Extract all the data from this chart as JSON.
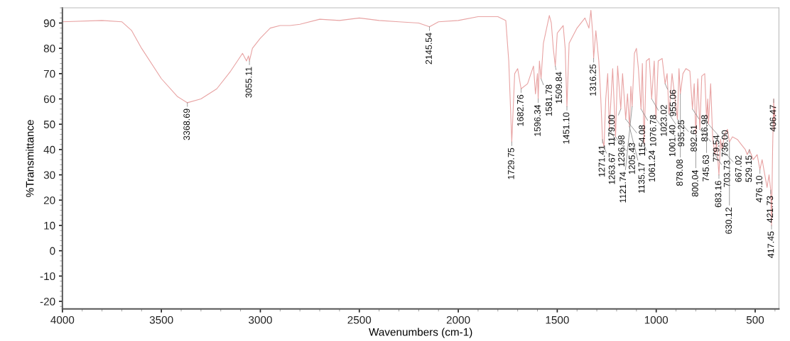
{
  "chart_data": {
    "type": "line",
    "xlabel": "Wavenumbers (cm-1)",
    "ylabel": "%Transmittance",
    "xlim": [
      4000,
      380
    ],
    "ylim": [
      -23,
      96
    ],
    "xticks": [
      4000,
      3500,
      3000,
      2500,
      2000,
      1500,
      1000,
      500
    ],
    "yticks": [
      -20,
      -10,
      0,
      10,
      20,
      30,
      40,
      50,
      60,
      70,
      80,
      90
    ],
    "grid": false,
    "marker": "none",
    "line_style": "solid",
    "series": [
      {
        "color": "#e8a3a3",
        "x": [
          4000,
          3800,
          3700,
          3650,
          3600,
          3500,
          3420,
          3368.69,
          3300,
          3220,
          3150,
          3090,
          3070,
          3060,
          3055.11,
          3040,
          3000,
          2950,
          2900,
          2850,
          2800,
          2700,
          2600,
          2500,
          2400,
          2300,
          2200,
          2145.54,
          2100,
          2000,
          1900,
          1800,
          1760,
          1745,
          1729.75,
          1715,
          1700,
          1682.76,
          1650,
          1620,
          1610,
          1600,
          1596.34,
          1590,
          1581.78,
          1570,
          1540,
          1530,
          1520,
          1509.84,
          1500,
          1490,
          1470,
          1460,
          1451.1,
          1440,
          1400,
          1360,
          1340,
          1330,
          1320,
          1316.25,
          1305,
          1290,
          1280,
          1271.41,
          1263.67,
          1255,
          1245,
          1236.98,
          1220,
          1205.43,
          1195,
          1179,
          1170,
          1154.08,
          1145,
          1135.17,
          1128,
          1121.74,
          1110,
          1100,
          1090,
          1076.78,
          1070,
          1061.24,
          1050,
          1035,
          1023.02,
          1010,
          1001.4,
          990,
          970,
          955.06,
          945,
          935.25,
          920,
          905,
          892.61,
          885,
          878.08,
          865,
          850,
          830,
          816.98,
          808,
          800.04,
          790,
          779.54,
          770,
          755,
          745.63,
          740,
          736,
          725,
          715,
          703.73,
          695,
          683.16,
          675,
          667.02,
          655,
          640,
          630.12,
          615,
          590,
          570,
          550,
          540,
          529.15,
          510,
          490,
          476.1,
          465,
          440,
          430,
          421.73,
          417.45,
          412,
          406.47,
          403,
          400
        ],
        "values": [
          90.5,
          91,
          90.5,
          87,
          80,
          68,
          61,
          58.5,
          60,
          64,
          71,
          78,
          75,
          77,
          75,
          80,
          84,
          88,
          89,
          89,
          89.5,
          91.5,
          91,
          92,
          91,
          90.5,
          90,
          88.5,
          90.5,
          91,
          92.5,
          92.5,
          91,
          75,
          43,
          70,
          72,
          64,
          66,
          73,
          62,
          70,
          60,
          75,
          68,
          82,
          93,
          90,
          80,
          73,
          86,
          87,
          89,
          80,
          57,
          82,
          88,
          92,
          88,
          95,
          85,
          76,
          87,
          75,
          60,
          44,
          41,
          60,
          70,
          48,
          72,
          45,
          73,
          56,
          70,
          52,
          62,
          49,
          65,
          57,
          78,
          80,
          72,
          56,
          74,
          42,
          75,
          76,
          60,
          75,
          52,
          75,
          76,
          66,
          70,
          54,
          70,
          60,
          52,
          72,
          62,
          70,
          72,
          71,
          56,
          66,
          46,
          68,
          48,
          69,
          70,
          52,
          60,
          50,
          66,
          45,
          38,
          43,
          30,
          44,
          40,
          46,
          48,
          43,
          45,
          44,
          42,
          40,
          38,
          40,
          36,
          38,
          32,
          36,
          25,
          30,
          24,
          10,
          40,
          60,
          48,
          57
        ]
      }
    ],
    "annotations": [
      {
        "text": "3368.69",
        "x": 3368.69,
        "y": 58.5
      },
      {
        "text": "3055.11",
        "x": 3055.11,
        "y": 75
      },
      {
        "text": "2145.54",
        "x": 2145.54,
        "y": 88.5
      },
      {
        "text": "1729.75",
        "x": 1729.75,
        "y": 43
      },
      {
        "text": "1682.76",
        "x": 1682.76,
        "y": 64
      },
      {
        "text": "1596.34",
        "x": 1596.34,
        "y": 60
      },
      {
        "text": "1581.78",
        "x": 1581.78,
        "y": 68
      },
      {
        "text": "1509.84",
        "x": 1509.84,
        "y": 73
      },
      {
        "text": "1451.10",
        "x": 1451.1,
        "y": 57
      },
      {
        "text": "1316.25",
        "x": 1316.25,
        "y": 76
      },
      {
        "text": "1271.41",
        "x": 1271.41,
        "y": 44
      },
      {
        "text": "1263.67",
        "x": 1263.67,
        "y": 41
      },
      {
        "text": "1236.98",
        "x": 1236.98,
        "y": 48
      },
      {
        "text": "1205.43",
        "x": 1205.43,
        "y": 45
      },
      {
        "text": "1179.00",
        "x": 1179,
        "y": 56
      },
      {
        "text": "1154.08",
        "x": 1154.08,
        "y": 52
      },
      {
        "text": "1135.17",
        "x": 1135.17,
        "y": 49
      },
      {
        "text": "1121.74",
        "x": 1121.74,
        "y": 57
      },
      {
        "text": "1076.78",
        "x": 1076.78,
        "y": 56
      },
      {
        "text": "1061.24",
        "x": 1061.24,
        "y": 42
      },
      {
        "text": "1023.02",
        "x": 1023.02,
        "y": 60
      },
      {
        "text": "1001.40",
        "x": 1001.4,
        "y": 52
      },
      {
        "text": "955.06",
        "x": 955.06,
        "y": 66
      },
      {
        "text": "935.25",
        "x": 935.25,
        "y": 54
      },
      {
        "text": "892.61",
        "x": 892.61,
        "y": 52
      },
      {
        "text": "878.08",
        "x": 878.08,
        "y": 62
      },
      {
        "text": "816.98",
        "x": 816.98,
        "y": 56
      },
      {
        "text": "800.04",
        "x": 800.04,
        "y": 46
      },
      {
        "text": "779.54",
        "x": 779.54,
        "y": 48
      },
      {
        "text": "745.63",
        "x": 745.63,
        "y": 52
      },
      {
        "text": "736.00",
        "x": 736,
        "y": 50
      },
      {
        "text": "703.73",
        "x": 703.73,
        "y": 38
      },
      {
        "text": "683.16",
        "x": 683.16,
        "y": 30
      },
      {
        "text": "667.02",
        "x": 667.02,
        "y": 40
      },
      {
        "text": "630.12",
        "x": 630.12,
        "y": 43
      },
      {
        "text": "529.15",
        "x": 529.15,
        "y": 40
      },
      {
        "text": "476.10",
        "x": 476.1,
        "y": 32
      },
      {
        "text": "421.73",
        "x": 421.73,
        "y": 24
      },
      {
        "text": "417.45",
        "x": 417.45,
        "y": 10
      },
      {
        "text": "406.47",
        "x": 406.47,
        "y": 60
      }
    ]
  }
}
